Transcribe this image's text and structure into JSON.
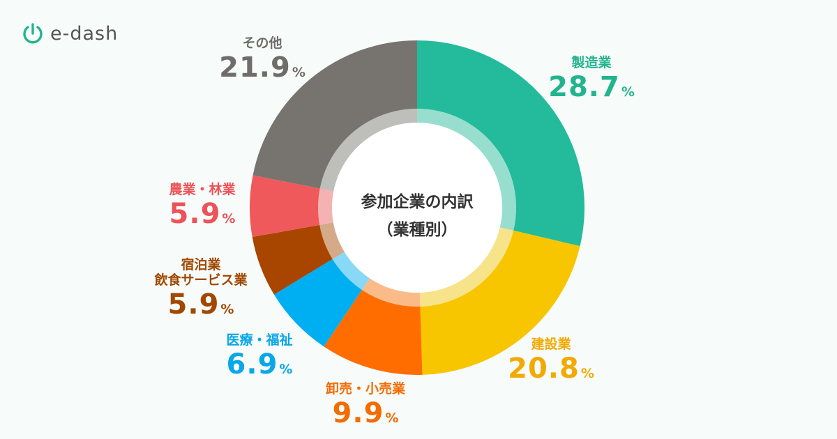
{
  "brand": {
    "name": "e-dash",
    "logo_color": "#23b48e"
  },
  "chart_data": {
    "type": "donut",
    "title_line1": "参加企業の内訳",
    "title_line2": "（業種別）",
    "unit": "%",
    "slices": [
      {
        "label": "製造業",
        "value": 28.7,
        "color": "#23bb9b",
        "label_color": "#23b48e"
      },
      {
        "label": "建設業",
        "value": 20.8,
        "color": "#f7c600",
        "label_color": "#f2a900"
      },
      {
        "label": "卸売・小売業",
        "value": 9.9,
        "color": "#ff6d00",
        "label_color": "#f46b00"
      },
      {
        "label": "医療・福祉",
        "value": 6.9,
        "color": "#00aff2",
        "label_color": "#0aa7e8"
      },
      {
        "label": "宿泊業\n飲食サービス業",
        "value": 5.9,
        "color": "#a84600",
        "label_color": "#a04800"
      },
      {
        "label": "農業・林業",
        "value": 5.9,
        "color": "#f0595b",
        "label_color": "#ec5358"
      },
      {
        "label": "その他",
        "value": 21.9,
        "color": "#77746f",
        "label_color": "#6f6c69"
      }
    ]
  }
}
